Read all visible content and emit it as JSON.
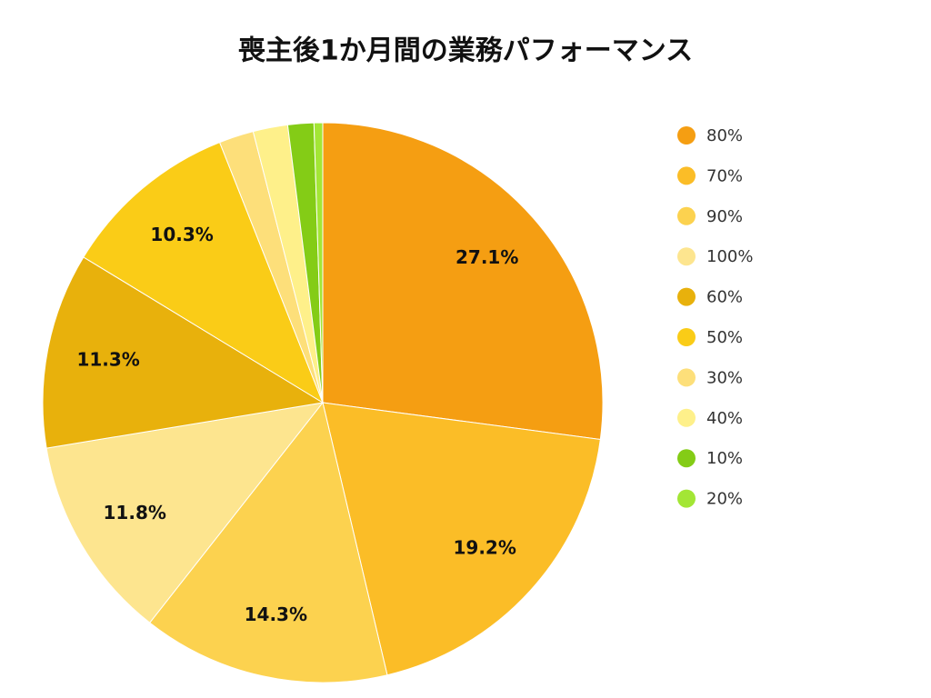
{
  "chart_data": {
    "type": "pie",
    "title": "喪主後1か月間の業務パフォーマンス",
    "categories": [
      "80%",
      "70%",
      "90%",
      "100%",
      "60%",
      "50%",
      "30%",
      "40%",
      "10%",
      "20%"
    ],
    "values": [
      27.1,
      19.2,
      14.3,
      11.8,
      11.3,
      10.3,
      2.0,
      2.0,
      1.5,
      0.5
    ],
    "value_labels": [
      "27.1%",
      "19.2%",
      "14.3%",
      "11.8%",
      "11.3%",
      "10.3%",
      null,
      null,
      null,
      null
    ],
    "colors": [
      "#f59e12",
      "#fbbd27",
      "#fcd24f",
      "#fde58f",
      "#e8b10c",
      "#facc17",
      "#fddf7a",
      "#fef08a",
      "#84cc16",
      "#a3e635"
    ],
    "legend": "right"
  }
}
